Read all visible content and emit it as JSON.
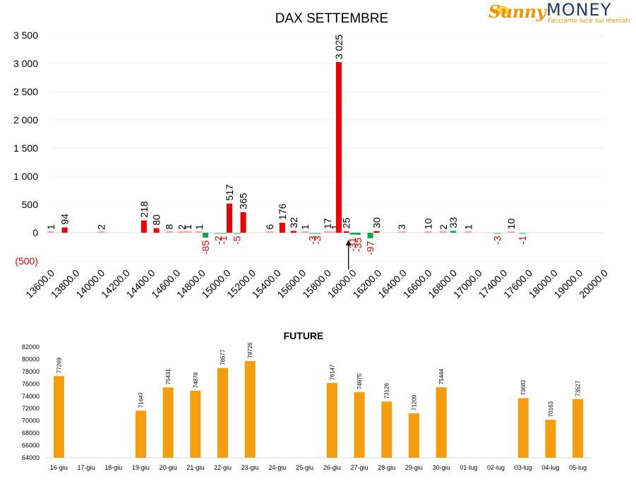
{
  "logo": {
    "brand_a": "Sunny",
    "brand_b": "MONEY",
    "tagline": "Facciamo luce sui mercati"
  },
  "colors": {
    "call": "#ee0000",
    "put": "#00a651",
    "call_small": "#f4a3a3",
    "put_small": "#8fd8ae",
    "future": "#f59d0c",
    "axis": "#000000",
    "neg_label": "#ee0000"
  },
  "chart_data": [
    {
      "type": "bar",
      "title": "DAX SETTEMBRE",
      "ylim": [
        -500,
        3500
      ],
      "yticks": [
        {
          "value": 3500,
          "label": "3 500"
        },
        {
          "value": 3000,
          "label": "3 000"
        },
        {
          "value": 2500,
          "label": "2 500"
        },
        {
          "value": 2000,
          "label": "2 000"
        },
        {
          "value": 1500,
          "label": "1 500"
        },
        {
          "value": 1000,
          "label": "1 000"
        },
        {
          "value": 500,
          "label": "500"
        },
        {
          "value": 0,
          "label": "0"
        },
        {
          "value": -500,
          "label": "(500)"
        }
      ],
      "categories": [
        "13600.0",
        "13800.0",
        "14000.0",
        "14200.0",
        "14400.0",
        "14600.0",
        "14800.0",
        "15000.0",
        "15200.0",
        "15400.0",
        "15600.0",
        "15800.0",
        "16000.0",
        "16200.0",
        "16400.0",
        "16600.0",
        "16800.0",
        "17000.0",
        "17400.0",
        "17600.0",
        "18000.0",
        "19000.0",
        "20000.0"
      ],
      "marker": {
        "category": "16000.0",
        "note": "arrow"
      },
      "bars": [
        {
          "pos": 0.0,
          "value": 1,
          "label": "1",
          "kind": "call"
        },
        {
          "pos": 0.55,
          "value": 94,
          "label": "94",
          "kind": "call"
        },
        {
          "pos": 2.0,
          "value": 2,
          "label": "2",
          "kind": "call"
        },
        {
          "pos": 3.7,
          "value": 218,
          "label": "218",
          "kind": "call"
        },
        {
          "pos": 4.2,
          "value": 80,
          "label": "80",
          "kind": "call"
        },
        {
          "pos": 4.7,
          "value": 8,
          "label": "8",
          "kind": "call"
        },
        {
          "pos": 5.2,
          "value": 2,
          "label": "2",
          "kind": "call"
        },
        {
          "pos": 5.45,
          "value": 1,
          "label": "1",
          "kind": "call"
        },
        {
          "pos": 5.9,
          "value": 1,
          "label": "1",
          "kind": "call"
        },
        {
          "pos": 6.15,
          "value": -85,
          "label": "-85",
          "kind": "put"
        },
        {
          "pos": 6.65,
          "value": -2,
          "label": "-2",
          "kind": "put"
        },
        {
          "pos": 6.85,
          "value": -1,
          "label": "-1",
          "kind": "put"
        },
        {
          "pos": 7.1,
          "value": 517,
          "label": "517",
          "kind": "call"
        },
        {
          "pos": 7.4,
          "value": -5,
          "label": "-5",
          "kind": "put"
        },
        {
          "pos": 7.65,
          "value": 365,
          "label": "365",
          "kind": "call"
        },
        {
          "pos": 8.7,
          "value": 6,
          "label": "6",
          "kind": "call"
        },
        {
          "pos": 9.2,
          "value": 176,
          "label": "176",
          "kind": "call"
        },
        {
          "pos": 9.65,
          "value": 32,
          "label": "32",
          "kind": "call"
        },
        {
          "pos": 10.1,
          "value": 1,
          "label": "1",
          "kind": "call"
        },
        {
          "pos": 10.4,
          "value": -3,
          "label": "-3",
          "kind": "put"
        },
        {
          "pos": 10.6,
          "value": -3,
          "label": "-3",
          "kind": "put"
        },
        {
          "pos": 11.0,
          "value": 17,
          "label": "17",
          "kind": "call"
        },
        {
          "pos": 11.3,
          "value": 1,
          "label": "1",
          "kind": "call"
        },
        {
          "pos": 11.45,
          "value": 3025,
          "label": "3 025",
          "kind": "call"
        },
        {
          "pos": 11.75,
          "value": 25,
          "label": "25",
          "kind": "call"
        },
        {
          "pos": 12.0,
          "value": -31,
          "label": "-31",
          "kind": "put"
        },
        {
          "pos": 12.2,
          "value": -35,
          "label": "-35",
          "kind": "put"
        },
        {
          "pos": 12.7,
          "value": -97,
          "label": "-97",
          "kind": "put"
        },
        {
          "pos": 12.95,
          "value": 30,
          "label": "30",
          "kind": "call"
        },
        {
          "pos": 13.95,
          "value": 3,
          "label": "3",
          "kind": "call"
        },
        {
          "pos": 15.0,
          "value": 10,
          "label": "10",
          "kind": "call"
        },
        {
          "pos": 15.6,
          "value": 2,
          "label": "2",
          "kind": "call"
        },
        {
          "pos": 16.0,
          "value": 33,
          "label": "33",
          "kind": "put"
        },
        {
          "pos": 16.6,
          "value": 1,
          "label": "1",
          "kind": "call"
        },
        {
          "pos": 17.75,
          "value": -3,
          "label": "-3",
          "kind": "put"
        },
        {
          "pos": 18.3,
          "value": 10,
          "label": "10",
          "kind": "call"
        },
        {
          "pos": 18.75,
          "value": -1,
          "label": "-1",
          "kind": "put"
        }
      ]
    },
    {
      "type": "bar",
      "title": "FUTURE",
      "ylim": [
        64000,
        82000
      ],
      "yticks": [
        64000,
        66000,
        68000,
        70000,
        72000,
        74000,
        76000,
        78000,
        80000,
        82000
      ],
      "categories": [
        "16-giu",
        "17-giu",
        "18-giu",
        "19-giu",
        "20-giu",
        "21-giu",
        "22-giu",
        "23-giu",
        "24-giu",
        "25-giu",
        "26-giu",
        "27-giu",
        "28-giu",
        "29-giu",
        "30-giu",
        "01-lug",
        "02-lug",
        "03-lug",
        "04-lug",
        "05-lug"
      ],
      "values": [
        77269,
        null,
        null,
        71647,
        75431,
        74878,
        78577,
        79726,
        null,
        null,
        76147,
        74675,
        73126,
        71209,
        75444,
        null,
        null,
        73682,
        70163,
        73527
      ]
    }
  ]
}
